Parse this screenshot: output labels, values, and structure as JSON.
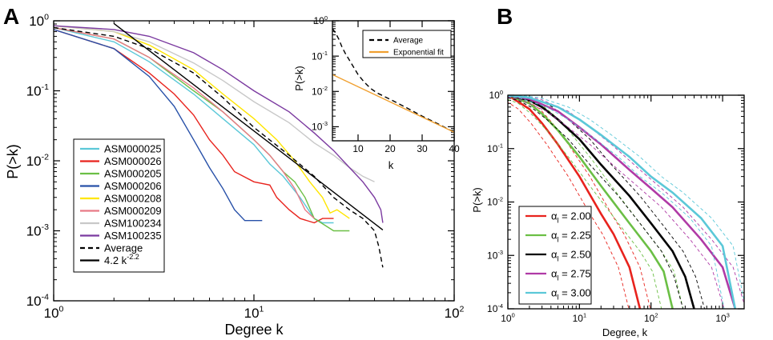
{
  "chart_data": [
    {
      "panel": "A",
      "type": "line",
      "xscale": "log",
      "yscale": "log",
      "xlim": [
        1,
        100
      ],
      "ylim": [
        0.0001,
        1
      ],
      "xlabel": "Degree k",
      "ylabel": "P(>k)",
      "xtick_labels": [
        {
          "value": 1,
          "base": "10",
          "exp": "0"
        },
        {
          "value": 10,
          "base": "10",
          "exp": "1"
        },
        {
          "value": 100,
          "base": "10",
          "exp": "2"
        }
      ],
      "ytick_labels": [
        {
          "value": 1,
          "base": "10",
          "exp": "0"
        },
        {
          "value": 0.1,
          "base": "10",
          "exp": "-1"
        },
        {
          "value": 0.01,
          "base": "10",
          "exp": "-2"
        },
        {
          "value": 0.001,
          "base": "10",
          "exp": "-3"
        },
        {
          "value": 0.0001,
          "base": "10",
          "exp": "-4"
        }
      ],
      "legend_position": "lower-left",
      "series": [
        {
          "name": "ASM000025",
          "color": "#5bc8d8",
          "style": "solid",
          "x": [
            1,
            2,
            3,
            5,
            7,
            10,
            12,
            14,
            17,
            20,
            22,
            25
          ],
          "y": [
            0.8,
            0.5,
            0.26,
            0.09,
            0.04,
            0.017,
            0.009,
            0.006,
            0.003,
            0.0015,
            0.0013,
            0.0013
          ]
        },
        {
          "name": "ASM000026",
          "color": "#e8231d",
          "style": "solid",
          "x": [
            1,
            2,
            3,
            4,
            5,
            6,
            7,
            8,
            10,
            12,
            13,
            15,
            17,
            20,
            22,
            25
          ],
          "y": [
            0.75,
            0.4,
            0.18,
            0.09,
            0.045,
            0.02,
            0.012,
            0.007,
            0.005,
            0.0045,
            0.003,
            0.002,
            0.0015,
            0.0013,
            0.0015,
            0.0015
          ]
        },
        {
          "name": "ASM000205",
          "color": "#6bbf45",
          "style": "solid",
          "x": [
            1,
            2,
            3,
            5,
            7,
            10,
            12,
            14,
            16,
            18,
            20,
            25,
            30
          ],
          "y": [
            0.8,
            0.55,
            0.3,
            0.1,
            0.05,
            0.02,
            0.012,
            0.007,
            0.005,
            0.003,
            0.0015,
            0.001,
            0.001
          ]
        },
        {
          "name": "ASM000206",
          "color": "#2750a8",
          "style": "solid",
          "x": [
            1,
            2,
            3,
            4,
            5,
            6,
            7,
            8,
            9,
            10,
            11
          ],
          "y": [
            0.75,
            0.4,
            0.16,
            0.06,
            0.02,
            0.008,
            0.004,
            0.002,
            0.0014,
            0.0014,
            0.0014
          ]
        },
        {
          "name": "ASM000208",
          "color": "#ffe600",
          "style": "solid",
          "x": [
            1,
            2,
            3,
            5,
            7,
            10,
            13,
            16,
            19,
            22,
            24,
            26,
            30
          ],
          "y": [
            0.85,
            0.7,
            0.45,
            0.2,
            0.09,
            0.04,
            0.02,
            0.01,
            0.005,
            0.003,
            0.0018,
            0.002,
            0.0015
          ]
        },
        {
          "name": "ASM000209",
          "color": "#e87a86",
          "style": "solid",
          "x": [
            1,
            2,
            3,
            5,
            7,
            10,
            12,
            14,
            16,
            18,
            20
          ],
          "y": [
            0.8,
            0.55,
            0.3,
            0.11,
            0.05,
            0.02,
            0.012,
            0.007,
            0.004,
            0.002,
            0.0015
          ]
        },
        {
          "name": "ASM100234",
          "color": "#c8c8c8",
          "style": "solid",
          "x": [
            1,
            2,
            3,
            5,
            7,
            10,
            15,
            20,
            25,
            30,
            35,
            40
          ],
          "y": [
            0.85,
            0.7,
            0.5,
            0.25,
            0.14,
            0.07,
            0.035,
            0.018,
            0.012,
            0.008,
            0.006,
            0.005
          ]
        },
        {
          "name": "ASM100235",
          "color": "#7b3aa0",
          "style": "solid",
          "x": [
            1,
            2,
            3,
            5,
            7,
            10,
            15,
            20,
            25,
            30,
            35,
            40,
            43,
            44
          ],
          "y": [
            0.85,
            0.75,
            0.6,
            0.35,
            0.2,
            0.1,
            0.05,
            0.025,
            0.014,
            0.008,
            0.005,
            0.003,
            0.002,
            0.0013
          ]
        },
        {
          "name": "Average",
          "color": "#000000",
          "style": "dashed",
          "x": [
            1,
            2,
            3,
            5,
            7,
            10,
            15,
            20,
            25,
            30,
            35,
            40,
            42,
            44
          ],
          "y": [
            0.8,
            0.6,
            0.4,
            0.18,
            0.08,
            0.03,
            0.012,
            0.006,
            0.003,
            0.002,
            0.0015,
            0.001,
            0.0006,
            0.0003
          ]
        },
        {
          "name": "4.2 k^-2.2",
          "color": "#000000",
          "style": "solid",
          "x": [
            2,
            44
          ],
          "y": [
            0.914,
            0.00103
          ]
        }
      ],
      "legend": [
        {
          "label": "ASM000025",
          "color": "#5bc8d8",
          "style": "solid"
        },
        {
          "label": "ASM000026",
          "color": "#e8231d",
          "style": "solid"
        },
        {
          "label": "ASM000205",
          "color": "#6bbf45",
          "style": "solid"
        },
        {
          "label": "ASM000206",
          "color": "#2750a8",
          "style": "solid"
        },
        {
          "label": "ASM000208",
          "color": "#ffe600",
          "style": "solid"
        },
        {
          "label": "ASM000209",
          "color": "#e87a86",
          "style": "solid"
        },
        {
          "label": "ASM100234",
          "color": "#c8c8c8",
          "style": "solid"
        },
        {
          "label": "ASM100235",
          "color": "#7b3aa0",
          "style": "solid"
        },
        {
          "label": "Average",
          "color": "#000000",
          "style": "dashed"
        },
        {
          "label": "4.2 k",
          "sup": "-2.2",
          "color": "#000000",
          "style": "solid"
        }
      ]
    },
    {
      "panel": "A-inset",
      "type": "line",
      "xscale": "linear",
      "yscale": "log",
      "xlim": [
        2,
        40
      ],
      "ylim": [
        0.0004,
        1
      ],
      "xlabel": "k",
      "ylabel": "P(>k)",
      "xtick_labels": [
        {
          "value": 10,
          "label": "10"
        },
        {
          "value": 20,
          "label": "20"
        },
        {
          "value": 30,
          "label": "30"
        },
        {
          "value": 40,
          "label": "40"
        }
      ],
      "ytick_labels": [
        {
          "value": 1,
          "base": "10",
          "exp": "0"
        },
        {
          "value": 0.1,
          "base": "10",
          "exp": "-1"
        },
        {
          "value": 0.01,
          "base": "10",
          "exp": "-2"
        },
        {
          "value": 0.001,
          "base": "10",
          "exp": "-3"
        }
      ],
      "series": [
        {
          "name": "Average",
          "color": "#000000",
          "style": "dashed",
          "x": [
            2,
            3,
            4,
            5,
            6,
            8,
            10,
            12,
            14,
            16,
            20,
            25,
            30,
            35,
            40
          ],
          "y": [
            0.6,
            0.45,
            0.3,
            0.18,
            0.12,
            0.06,
            0.03,
            0.018,
            0.012,
            0.009,
            0.006,
            0.0035,
            0.002,
            0.0012,
            0.0007
          ]
        },
        {
          "name": "Exponential fit",
          "color": "#f0a030",
          "style": "solid",
          "x": [
            2,
            40
          ],
          "y": [
            0.03,
            0.0007
          ]
        }
      ],
      "legend": [
        {
          "label": "Average",
          "color": "#000000",
          "style": "dashed"
        },
        {
          "label": "Exponential fit",
          "color": "#f0a030",
          "style": "solid"
        }
      ]
    },
    {
      "panel": "B",
      "type": "line",
      "xscale": "log",
      "yscale": "log",
      "xlim": [
        1,
        2000
      ],
      "ylim": [
        0.0001,
        1
      ],
      "xlabel": "Degree, k",
      "ylabel": "P(>k)",
      "xtick_labels": [
        {
          "value": 1,
          "base": "10",
          "exp": "0"
        },
        {
          "value": 10,
          "base": "10",
          "exp": "1"
        },
        {
          "value": 100,
          "base": "10",
          "exp": "2"
        },
        {
          "value": 1000,
          "base": "10",
          "exp": "3"
        }
      ],
      "ytick_labels": [
        {
          "value": 1,
          "base": "10",
          "exp": "0"
        },
        {
          "value": 0.1,
          "base": "10",
          "exp": "-1"
        },
        {
          "value": 0.01,
          "base": "10",
          "exp": "-2"
        },
        {
          "value": 0.001,
          "base": "10",
          "exp": "-3"
        },
        {
          "value": 0.0001,
          "base": "10",
          "exp": "-4"
        }
      ],
      "legend_position": "lower-left",
      "series": [
        {
          "name": "α_l = 2.00",
          "color": "#e8231d",
          "x": [
            1,
            2,
            3,
            5,
            10,
            20,
            30,
            50,
            70
          ],
          "y": [
            1,
            0.55,
            0.3,
            0.12,
            0.03,
            0.006,
            0.0025,
            0.0006,
            0.0001
          ]
        },
        {
          "name": "α_l = 2.25",
          "color": "#6bbf45",
          "x": [
            1,
            2,
            3,
            5,
            10,
            20,
            50,
            100,
            150,
            200
          ],
          "y": [
            1,
            0.7,
            0.45,
            0.22,
            0.07,
            0.02,
            0.004,
            0.0012,
            0.0005,
            0.0001
          ]
        },
        {
          "name": "α_l = 2.50",
          "color": "#000000",
          "x": [
            1,
            2,
            3,
            5,
            10,
            20,
            50,
            100,
            200,
            300,
            400
          ],
          "y": [
            1,
            0.8,
            0.6,
            0.35,
            0.15,
            0.05,
            0.013,
            0.004,
            0.0012,
            0.0004,
            0.0001
          ]
        },
        {
          "name": "α_l = 2.75",
          "color": "#b03aa6",
          "x": [
            1,
            2,
            5,
            10,
            20,
            50,
            100,
            200,
            500,
            1000,
            1500
          ],
          "y": [
            1,
            0.85,
            0.5,
            0.25,
            0.12,
            0.04,
            0.018,
            0.008,
            0.002,
            0.0006,
            0.0001
          ]
        },
        {
          "name": "α_l = 3.00",
          "color": "#5bc8d8",
          "x": [
            1,
            2,
            5,
            10,
            20,
            50,
            100,
            200,
            500,
            1000,
            1500
          ],
          "y": [
            1,
            0.9,
            0.6,
            0.35,
            0.18,
            0.07,
            0.03,
            0.015,
            0.005,
            0.0015,
            0.0001
          ]
        }
      ],
      "legend": [
        {
          "prefix": "α",
          "sub": "l",
          "label": " = 2.00",
          "color": "#e8231d"
        },
        {
          "prefix": "α",
          "sub": "l",
          "label": " = 2.25",
          "color": "#6bbf45"
        },
        {
          "prefix": "α",
          "sub": "l",
          "label": " = 2.50",
          "color": "#000000"
        },
        {
          "prefix": "α",
          "sub": "l",
          "label": " = 2.75",
          "color": "#b03aa6"
        },
        {
          "prefix": "α",
          "sub": "l",
          "label": " = 3.00",
          "color": "#5bc8d8"
        }
      ]
    }
  ],
  "panel_labels": {
    "a": "A",
    "b": "B"
  }
}
